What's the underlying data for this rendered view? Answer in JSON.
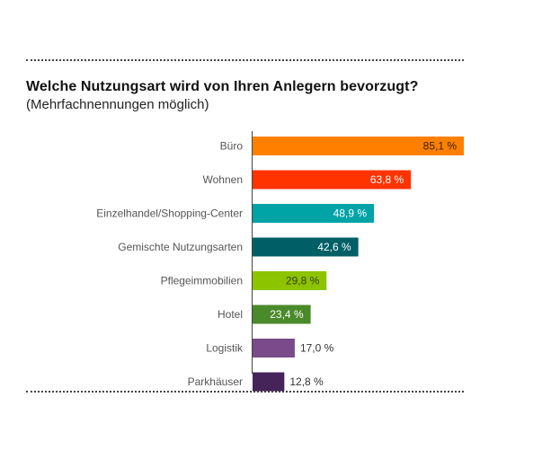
{
  "colors": {
    "buero": "#FF8000",
    "wohnen": "#FF3300",
    "einzelhandel": "#00A3A6",
    "gemischt": "#005F66",
    "pflege": "#8CC400",
    "hotel": "#4A8A2A",
    "logistik": "#7A4A8A",
    "parkhaeuser": "#45245A",
    "axis": "#444444",
    "rule": "#444444"
  },
  "chart_data": {
    "type": "bar",
    "orientation": "horizontal",
    "title": "Welche Nutzungsart wird von Ihren Anlegern bevorzugt?",
    "subtitle": "(Mehrfachnennungen möglich)",
    "xlim": [
      0,
      85.1
    ],
    "grid": false,
    "categories": [
      "Büro",
      "Wohnen",
      "Einzelhandel/Shopping-Center",
      "Gemischte Nutzungsarten",
      "Pflegeimmobilien",
      "Hotel",
      "Logistik",
      "Parkhäuser"
    ],
    "values": [
      85.1,
      63.8,
      48.9,
      42.6,
      29.8,
      23.4,
      17.0,
      12.8
    ],
    "value_labels": [
      "85,1 %",
      "63,8 %",
      "48,9 %",
      "42,6 %",
      "29,8 %",
      "23,4 %",
      "17,0 %",
      "12,8 %"
    ],
    "bar_colors": [
      "#FF8000",
      "#FF3300",
      "#00A3A6",
      "#005F66",
      "#8CC400",
      "#4A8A2A",
      "#7A4A8A",
      "#45245A"
    ],
    "label_inside": [
      true,
      true,
      true,
      true,
      true,
      true,
      false,
      false
    ],
    "label_colors": [
      "#3a2000",
      "#ffffff",
      "#ffffff",
      "#ffffff",
      "#3a3a00",
      "#ffffff",
      "#333333",
      "#333333"
    ]
  }
}
